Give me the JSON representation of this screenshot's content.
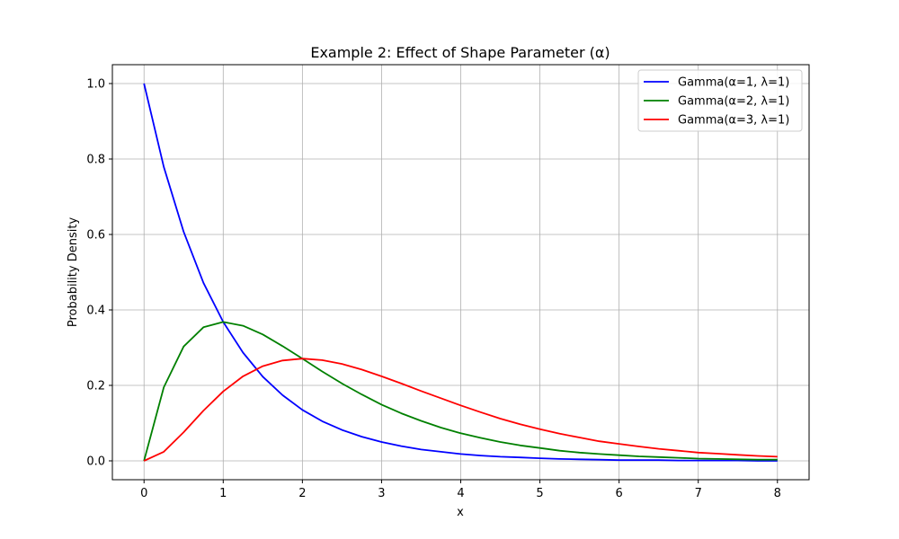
{
  "chart_data": {
    "type": "line",
    "title": "Example 2: Effect of Shape Parameter (α)",
    "xlabel": "x",
    "ylabel": "Probability Density",
    "xlim": [
      -0.4,
      8.4
    ],
    "ylim": [
      -0.05,
      1.05
    ],
    "xticks": [
      0,
      1,
      2,
      3,
      4,
      5,
      6,
      7,
      8
    ],
    "yticks": [
      0.0,
      0.2,
      0.4,
      0.6,
      0.8,
      1.0
    ],
    "xtick_labels": [
      "0",
      "1",
      "2",
      "3",
      "4",
      "5",
      "6",
      "7",
      "8"
    ],
    "ytick_labels": [
      "0.0",
      "0.2",
      "0.4",
      "0.6",
      "0.8",
      "1.0"
    ],
    "grid": true,
    "legend_position": "top-right",
    "x": [
      0,
      0.25,
      0.5,
      0.75,
      1,
      1.25,
      1.5,
      1.75,
      2,
      2.25,
      2.5,
      2.75,
      3,
      3.25,
      3.5,
      3.75,
      4,
      4.25,
      4.5,
      4.75,
      5,
      5.25,
      5.5,
      5.75,
      6,
      6.25,
      6.5,
      6.75,
      7,
      7.25,
      7.5,
      7.75,
      8
    ],
    "series": [
      {
        "name": "Gamma(α=1, λ=1)",
        "color": "#0000ff",
        "values": [
          1.0,
          0.779,
          0.607,
          0.472,
          0.368,
          0.287,
          0.223,
          0.174,
          0.135,
          0.105,
          0.082,
          0.064,
          0.05,
          0.039,
          0.03,
          0.024,
          0.018,
          0.014,
          0.011,
          0.009,
          0.007,
          0.005,
          0.004,
          0.003,
          0.002,
          0.002,
          0.002,
          0.001,
          0.001,
          0.001,
          0.001,
          0.0,
          0.0
        ]
      },
      {
        "name": "Gamma(α=2, λ=1)",
        "color": "#008000",
        "values": [
          0.0,
          0.195,
          0.303,
          0.354,
          0.368,
          0.358,
          0.335,
          0.304,
          0.271,
          0.237,
          0.205,
          0.176,
          0.149,
          0.126,
          0.106,
          0.088,
          0.073,
          0.061,
          0.05,
          0.041,
          0.034,
          0.027,
          0.022,
          0.018,
          0.015,
          0.012,
          0.01,
          0.008,
          0.006,
          0.005,
          0.004,
          0.003,
          0.003
        ]
      },
      {
        "name": "Gamma(α=3, λ=1)",
        "color": "#ff0000",
        "values": [
          0.0,
          0.024,
          0.076,
          0.133,
          0.184,
          0.224,
          0.251,
          0.266,
          0.271,
          0.267,
          0.257,
          0.242,
          0.224,
          0.205,
          0.185,
          0.166,
          0.147,
          0.129,
          0.112,
          0.097,
          0.084,
          0.072,
          0.062,
          0.052,
          0.045,
          0.038,
          0.032,
          0.027,
          0.022,
          0.019,
          0.016,
          0.013,
          0.011
        ]
      }
    ]
  }
}
